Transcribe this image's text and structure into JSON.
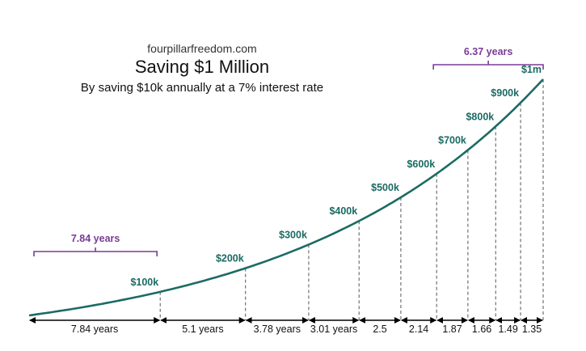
{
  "chart_data": {
    "type": "line",
    "source": "fourpillarfreedom.com",
    "title": "Saving $1 Million",
    "subtitle": "By saving $10k annually at a 7% interest rate",
    "xlabel": "",
    "ylabel": "",
    "xlim": [
      0,
      30.15
    ],
    "ylim": [
      0,
      1000000
    ],
    "milestones": [
      {
        "label": "$100k",
        "value": 100000,
        "years_cumulative": 7.84
      },
      {
        "label": "$200k",
        "value": 200000,
        "years_cumulative": 12.94
      },
      {
        "label": "$300k",
        "value": 300000,
        "years_cumulative": 16.72
      },
      {
        "label": "$400k",
        "value": 400000,
        "years_cumulative": 19.73
      },
      {
        "label": "$500k",
        "value": 500000,
        "years_cumulative": 22.23
      },
      {
        "label": "$600k",
        "value": 600000,
        "years_cumulative": 24.37
      },
      {
        "label": "$700k",
        "value": 700000,
        "years_cumulative": 26.24
      },
      {
        "label": "$800k",
        "value": 800000,
        "years_cumulative": 27.9
      },
      {
        "label": "$900k",
        "value": 900000,
        "years_cumulative": 29.39
      },
      {
        "label": "$1m",
        "value": 1000000,
        "years_cumulative": 30.74
      }
    ],
    "interval_labels": [
      "7.84 years",
      "5.1 years",
      "3.78 years",
      "3.01 years",
      "2.5",
      "2.14",
      "1.87",
      "1.66",
      "1.49",
      "1.35"
    ],
    "annotations": [
      {
        "label": "7.84 years",
        "spans": "$0 to $100k"
      },
      {
        "label": "6.37 years",
        "spans": "$600k to $1m"
      }
    ],
    "colors": {
      "line": "#1b6b63",
      "label": "#1b6b63",
      "bracket": "#7a3b96",
      "text": "#111111"
    }
  }
}
